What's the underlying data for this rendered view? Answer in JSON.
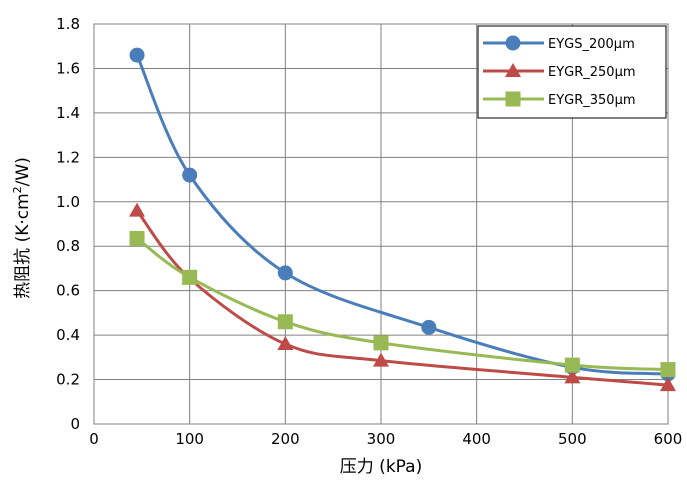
{
  "chart_data": {
    "type": "line",
    "xlabel": "压力 (kPa)",
    "ylabel_main": "热阻抗 (K·cm",
    "ylabel_sup": "2",
    "ylabel_tail": "/W)",
    "xlim": [
      0,
      600
    ],
    "ylim": [
      0,
      1.8
    ],
    "x_ticks": [
      "0",
      "100",
      "200",
      "300",
      "400",
      "500",
      "600"
    ],
    "y_ticks": [
      "0",
      "0.2",
      "0.4",
      "0.6",
      "0.8",
      "1.0",
      "1.2",
      "1.4",
      "1.6",
      "1.8"
    ],
    "grid": true,
    "legend_position": "top-right",
    "series": [
      {
        "name": "EYGS_200μm",
        "color": "#4a7ebb",
        "marker": "circle",
        "x": [
          45,
          100,
          200,
          350,
          500,
          600
        ],
        "y": [
          1.66,
          1.12,
          0.68,
          0.435,
          0.255,
          0.225
        ]
      },
      {
        "name": "EYGR_250μm",
        "color": "#be4b48",
        "marker": "triangle",
        "x": [
          45,
          100,
          200,
          300,
          500,
          600
        ],
        "y": [
          0.96,
          0.655,
          0.36,
          0.285,
          0.21,
          0.175
        ]
      },
      {
        "name": "EYGR_350μm",
        "color": "#98b954",
        "marker": "square",
        "x": [
          45,
          100,
          200,
          300,
          500,
          600
        ],
        "y": [
          0.835,
          0.66,
          0.46,
          0.365,
          0.265,
          0.245
        ]
      }
    ]
  }
}
